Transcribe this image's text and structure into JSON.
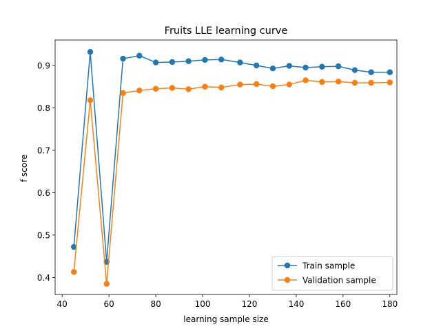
{
  "chart_data": {
    "type": "line",
    "title": "Fruits LLE learning curve",
    "xlabel": "learning sample size",
    "ylabel": "f score",
    "xlim": [
      37,
      183
    ],
    "ylim": [
      0.36,
      0.96
    ],
    "xticks": [
      40,
      60,
      80,
      100,
      120,
      140,
      160,
      180
    ],
    "yticks": [
      0.4,
      0.5,
      0.6,
      0.7,
      0.8,
      0.9
    ],
    "grid": false,
    "legend_position": "lower-right",
    "x": [
      45,
      52,
      59,
      66,
      73,
      80,
      87,
      94,
      101,
      108,
      116,
      123,
      130,
      137,
      144,
      151,
      158,
      165,
      172,
      180
    ],
    "series": [
      {
        "name": "Train sample",
        "color": "#1f77b4",
        "values": [
          0.472,
          0.932,
          0.437,
          0.916,
          0.923,
          0.907,
          0.908,
          0.91,
          0.913,
          0.914,
          0.907,
          0.9,
          0.893,
          0.899,
          0.895,
          0.897,
          0.898,
          0.889,
          0.884,
          0.884
        ]
      },
      {
        "name": "Validation sample",
        "color": "#ff7f0e",
        "values": [
          0.413,
          0.818,
          0.385,
          0.835,
          0.841,
          0.845,
          0.847,
          0.844,
          0.85,
          0.848,
          0.855,
          0.856,
          0.851,
          0.855,
          0.865,
          0.861,
          0.862,
          0.859,
          0.859,
          0.86
        ]
      }
    ]
  }
}
